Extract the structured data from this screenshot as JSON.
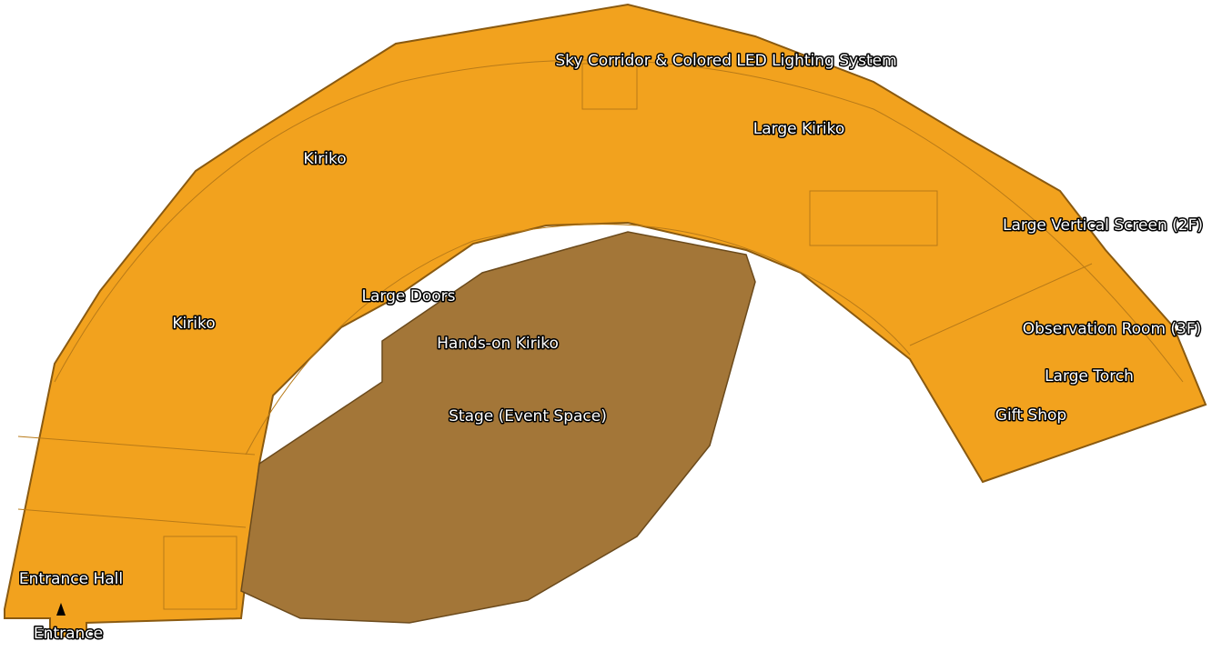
{
  "map": {
    "labels": [
      "Sky Corridor & Colored LED Lighting System",
      "Large Kiriko",
      "Kiriko",
      "Kiriko",
      "Large Vertical Screen (2F)",
      "Large Doors",
      "Hands-on Kiriko",
      "Observation Room (3F)",
      "Large Torch",
      "Stage (Event Space)",
      "Gift Shop",
      "Entrance Hall",
      "Entrance"
    ]
  }
}
